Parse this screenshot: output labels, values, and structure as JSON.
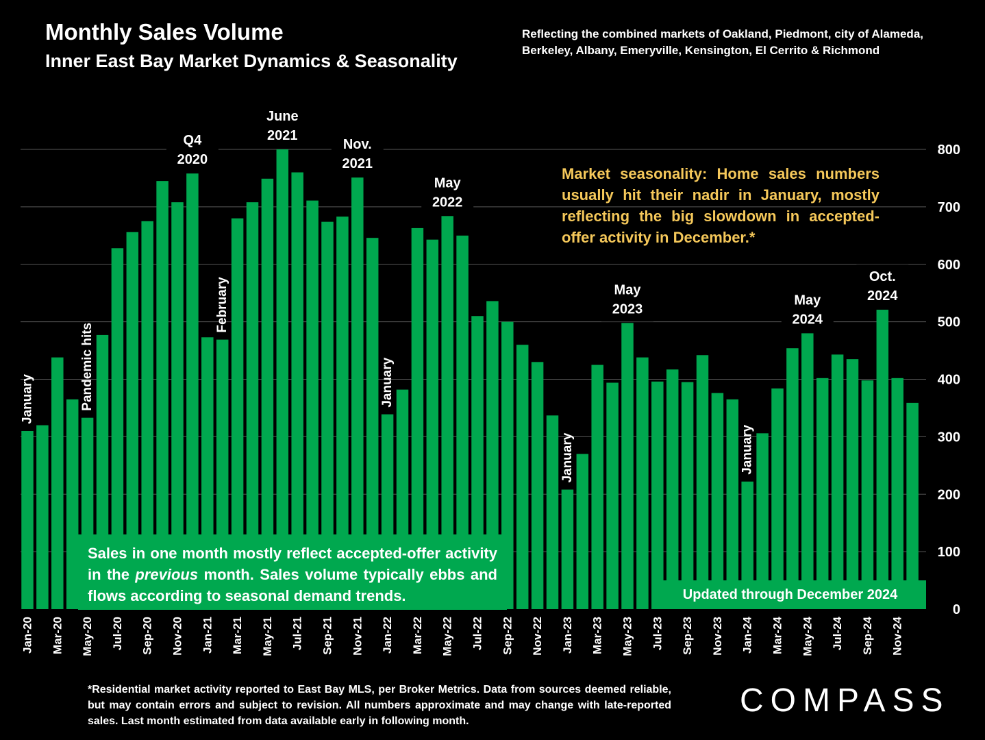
{
  "title": "Monthly Sales Volume",
  "subtitle": "Inner East Bay Market Dynamics & Seasonality",
  "note": "Reflecting the combined markets of Oakland, Piedmont, city of Alameda, Berkeley, Albany, Emeryville, Kensington, El Cerrito & Richmond",
  "seasonality_note": "Market seasonality: Home sales numbers usually hit their nadir in January, mostly reflecting the big slowdown in accepted-offer activity in December.*",
  "explain_note": {
    "before": "Sales in one month mostly reflect accepted-offer activity in the ",
    "emphasis": "previous",
    "after": " month. Sales volume typically ebbs and flows according to seasonal demand trends."
  },
  "updated": "Updated through December 2024",
  "footnote": "*Residential market activity reported to East Bay MLS, per Broker Metrics. Data from sources deemed reliable, but may contain errors and subject to revision. All numbers approximate and may change with late-reported sales. Last month estimated from data available early in following month.",
  "logo": "COMPASS",
  "colors": {
    "bar": "#00a84f",
    "background": "#000000",
    "highlight": "#f5c85a",
    "grid": "#595959"
  },
  "chart_data": {
    "type": "bar",
    "categories": [
      "Jan-20",
      "Feb-20",
      "Mar-20",
      "Apr-20",
      "May-20",
      "Jun-20",
      "Jul-20",
      "Aug-20",
      "Sep-20",
      "Oct-20",
      "Nov-20",
      "Dec-20",
      "Jan-21",
      "Feb-21",
      "Mar-21",
      "Apr-21",
      "May-21",
      "Jun-21",
      "Jul-21",
      "Aug-21",
      "Sep-21",
      "Oct-21",
      "Nov-21",
      "Dec-21",
      "Jan-22",
      "Feb-22",
      "Mar-22",
      "Apr-22",
      "May-22",
      "Jun-22",
      "Jul-22",
      "Aug-22",
      "Sep-22",
      "Oct-22",
      "Nov-22",
      "Dec-22",
      "Jan-23",
      "Feb-23",
      "Mar-23",
      "Apr-23",
      "May-23",
      "Jun-23",
      "Jul-23",
      "Aug-23",
      "Sep-23",
      "Oct-23",
      "Nov-23",
      "Dec-23",
      "Jan-24",
      "Feb-24",
      "Mar-24",
      "Apr-24",
      "May-24",
      "Jun-24",
      "Jul-24",
      "Aug-24",
      "Sep-24",
      "Oct-24",
      "Nov-24",
      "Dec-24"
    ],
    "tick_labels": [
      "Jan-20",
      "",
      "Mar-20",
      "",
      "May-20",
      "",
      "Jul-20",
      "",
      "Sep-20",
      "",
      "Nov-20",
      "",
      "Jan-21",
      "",
      "Mar-21",
      "",
      "May-21",
      "",
      "Jul-21",
      "",
      "Sep-21",
      "",
      "Nov-21",
      "",
      "Jan-22",
      "",
      "Mar-22",
      "",
      "May-22",
      "",
      "Jul-22",
      "",
      "Sep-22",
      "",
      "Nov-22",
      "",
      "Jan-23",
      "",
      "Mar-23",
      "",
      "May-23",
      "",
      "Jul-23",
      "",
      "Sep-23",
      "",
      "Nov-23",
      "",
      "Jan-24",
      "",
      "Mar-24",
      "",
      "May-24",
      "",
      "Jul-24",
      "",
      "Sep-24",
      "",
      "Nov-24",
      ""
    ],
    "values": [
      310,
      320,
      438,
      365,
      333,
      477,
      628,
      656,
      675,
      745,
      708,
      758,
      473,
      469,
      680,
      708,
      749,
      800,
      760,
      711,
      674,
      683,
      751,
      646,
      339,
      382,
      663,
      643,
      684,
      650,
      510,
      536,
      500,
      460,
      430,
      337,
      208,
      270,
      425,
      394,
      498,
      438,
      396,
      417,
      395,
      442,
      376,
      365,
      222,
      306,
      384,
      454,
      480,
      402,
      443,
      435,
      398,
      521,
      402,
      359
    ],
    "ylim": [
      0,
      800
    ],
    "yticks": [
      0,
      100,
      200,
      300,
      400,
      500,
      600,
      700,
      800
    ],
    "y_axis_position": "right",
    "grid": true,
    "annotations": [
      {
        "index": 0,
        "text": "January",
        "rotated": true
      },
      {
        "index": 4,
        "text": "Pandemic hits",
        "rotated": true
      },
      {
        "index": 11,
        "text": "Q4 2020",
        "rotated": false
      },
      {
        "index": 13,
        "text": "February",
        "rotated": true
      },
      {
        "index": 17,
        "text": "June 2021",
        "rotated": false
      },
      {
        "index": 22,
        "text": "Nov. 2021",
        "rotated": false
      },
      {
        "index": 24,
        "text": "January",
        "rotated": true
      },
      {
        "index": 28,
        "text": "May 2022",
        "rotated": false
      },
      {
        "index": 36,
        "text": "January",
        "rotated": true
      },
      {
        "index": 40,
        "text": "May 2023",
        "rotated": false
      },
      {
        "index": 48,
        "text": "January",
        "rotated": true
      },
      {
        "index": 52,
        "text": "May 2024",
        "rotated": false
      },
      {
        "index": 57,
        "text": "Oct. 2024",
        "rotated": false
      }
    ]
  }
}
